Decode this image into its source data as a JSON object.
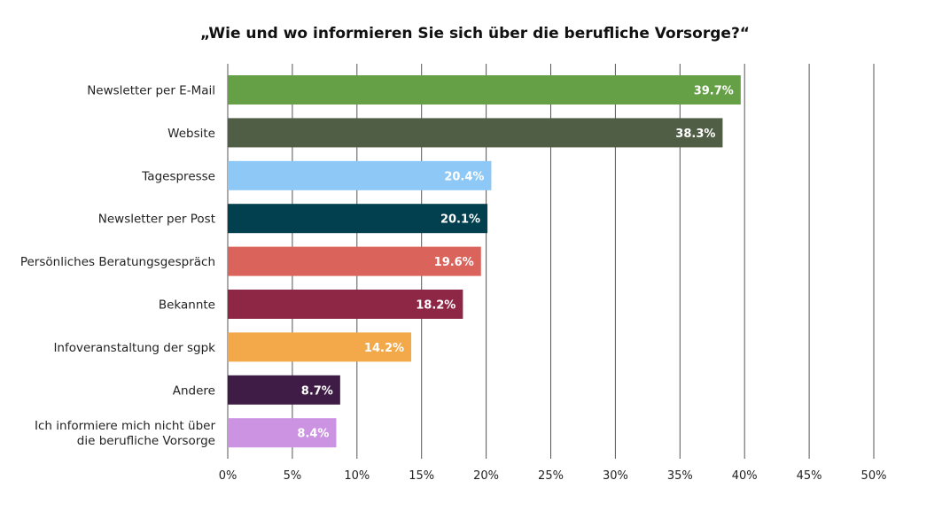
{
  "chart_data": {
    "type": "bar",
    "orientation": "horizontal",
    "title": "„Wie und wo informieren Sie sich über die berufliche Vorsorge?“",
    "xlabel": "",
    "ylabel": "",
    "xlim": [
      0,
      50
    ],
    "grid": true,
    "ticks": [
      0,
      5,
      10,
      15,
      20,
      25,
      30,
      35,
      40,
      45,
      50
    ],
    "tick_labels": [
      "0%",
      "5%",
      "10%",
      "15%",
      "20%",
      "25%",
      "30%",
      "35%",
      "40%",
      "45%",
      "50%"
    ],
    "categories": [
      [
        "Newsletter per E-Mail"
      ],
      [
        "Website"
      ],
      [
        "Tagespresse"
      ],
      [
        "Newsletter per Post"
      ],
      [
        "Persönliches Beratungsgespräch"
      ],
      [
        "Bekannte"
      ],
      [
        "Infoveranstaltung der sgpk"
      ],
      [
        "Andere"
      ],
      [
        "Ich informiere mich nicht über",
        "die berufliche Vorsorge"
      ]
    ],
    "values": [
      39.7,
      38.3,
      20.4,
      20.1,
      19.6,
      18.2,
      14.2,
      8.7,
      8.4
    ],
    "value_labels": [
      "39.7%",
      "38.3%",
      "20.4%",
      "20.1%",
      "19.6%",
      "18.2%",
      "14.2%",
      "8.7%",
      "8.4%"
    ],
    "colors": [
      "#65a046",
      "#505e46",
      "#8dc8f7",
      "#02404f",
      "#da635b",
      "#8e2746",
      "#f3a84a",
      "#3f1c45",
      "#cc93e2"
    ],
    "gridline_color": "#555555"
  }
}
